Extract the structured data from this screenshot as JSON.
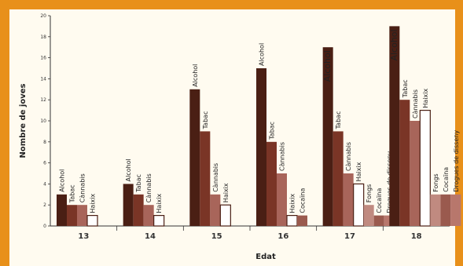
{
  "chart_data": {
    "type": "bar",
    "xlabel": "Edat",
    "ylabel": "Nombre de joves",
    "ylim": [
      0,
      20
    ],
    "yticks": [
      0,
      2,
      4,
      6,
      8,
      10,
      12,
      14,
      16,
      18,
      20
    ],
    "groups": [
      {
        "category": "13",
        "bars": [
          {
            "label": "Alcohol",
            "value": 3
          },
          {
            "label": "Tabac",
            "value": 2
          },
          {
            "label": "Cànnabis",
            "value": 2
          },
          {
            "label": "Haixix",
            "value": 1
          }
        ]
      },
      {
        "category": "14",
        "bars": [
          {
            "label": "Alcohol",
            "value": 4
          },
          {
            "label": "Tabac",
            "value": 3
          },
          {
            "label": "Cànnabis",
            "value": 2
          },
          {
            "label": "Haixix",
            "value": 1
          }
        ]
      },
      {
        "category": "15",
        "bars": [
          {
            "label": "Alcohol",
            "value": 13
          },
          {
            "label": "Tabac",
            "value": 9
          },
          {
            "label": "Cànnabis",
            "value": 3
          },
          {
            "label": "Haixix",
            "value": 2
          }
        ]
      },
      {
        "category": "16",
        "bars": [
          {
            "label": "Alcohol",
            "value": 15
          },
          {
            "label": "Tabac",
            "value": 8
          },
          {
            "label": "Cànnabis",
            "value": 5
          },
          {
            "label": "Haixix",
            "value": 1
          },
          {
            "label": "Cocaïna",
            "value": 1
          }
        ]
      },
      {
        "category": "17",
        "bars": [
          {
            "label": "Alcohol",
            "value": 17
          },
          {
            "label": "Tabac",
            "value": 9
          },
          {
            "label": "Cànnabis",
            "value": 5
          },
          {
            "label": "Haixix",
            "value": 4
          },
          {
            "label": "Fongs",
            "value": 2
          },
          {
            "label": "Cocaïna",
            "value": 1
          },
          {
            "label": "Drogues de disseny",
            "value": 1
          }
        ]
      },
      {
        "category": "18",
        "bars": [
          {
            "label": "Alcohol",
            "value": 19
          },
          {
            "label": "Tabac",
            "value": 12
          },
          {
            "label": "Cànnabis",
            "value": 10
          },
          {
            "label": "Haixix",
            "value": 11
          },
          {
            "label": "Fongs",
            "value": 3
          },
          {
            "label": "Cocaïna",
            "value": 3
          },
          {
            "label": "Drogues de disseny",
            "value": 3
          }
        ]
      }
    ],
    "colors": {
      "Alcohol": "#4a1f14",
      "Tabac": "#7a3526",
      "Cànnabis": "#a8655a",
      "Haixix": "#ffffff",
      "Cocaïna": "#9a5a4e",
      "Fongs": "#c08a80",
      "Drogues de disseny": "#b8776c"
    },
    "grid": false
  }
}
